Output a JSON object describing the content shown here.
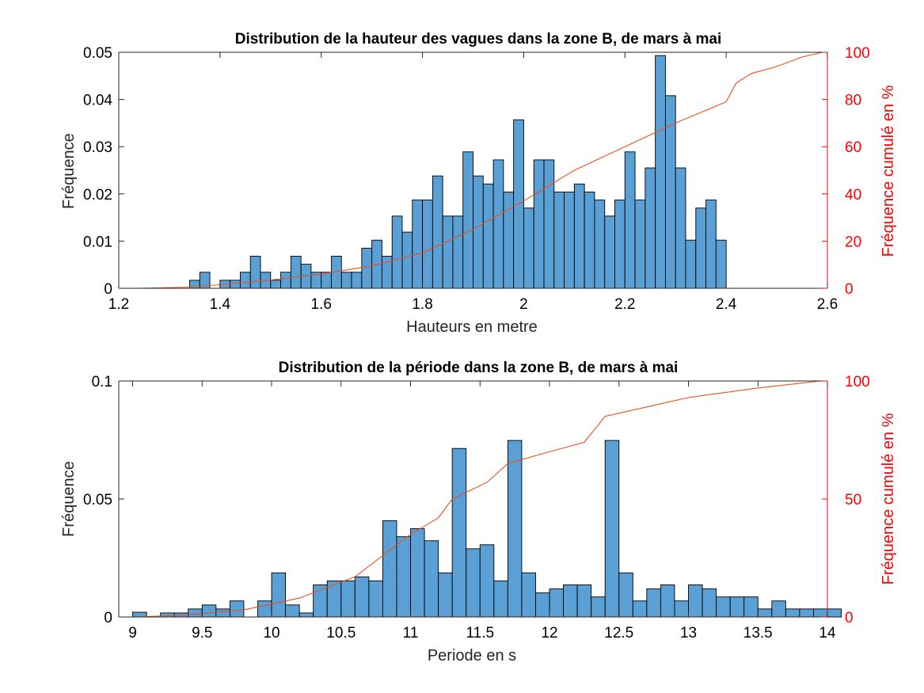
{
  "chart_data": [
    {
      "type": "bar",
      "title": "Distribution de la hauteur des vagues dans la zone B, de mars à mai",
      "xlabel": "Hauteurs en metre",
      "ylabel": "Fréquence",
      "ylabel_right": "Fréquence cumulé en %",
      "xlim": [
        1.2,
        2.6
      ],
      "ylim": [
        0,
        0.05
      ],
      "ylim_right": [
        0,
        100
      ],
      "xticks": [
        "1.2",
        "1.4",
        "1.6",
        "1.8",
        "2",
        "2.2",
        "2.4",
        "2.6"
      ],
      "yticks": [
        "0",
        "0.01",
        "0.02",
        "0.03",
        "0.04",
        "0.05"
      ],
      "yticks_right": [
        "0",
        "20",
        "40",
        "60",
        "80",
        "100"
      ],
      "bar_color": "#5aa0d4",
      "line_color": "#e8501e",
      "right_axis_color": "#ff0000",
      "grid": false,
      "bin_start": 1.34,
      "bin_width": 0.02,
      "values": [
        0.0017,
        0.0034,
        0.0,
        0.0017,
        0.0017,
        0.0034,
        0.0068,
        0.0034,
        0.0017,
        0.0034,
        0.0068,
        0.0051,
        0.0034,
        0.0034,
        0.0068,
        0.0034,
        0.0034,
        0.0085,
        0.0102,
        0.0068,
        0.0153,
        0.0119,
        0.0187,
        0.0187,
        0.0238,
        0.0153,
        0.0153,
        0.0289,
        0.0238,
        0.0221,
        0.0272,
        0.0204,
        0.0357,
        0.017,
        0.0272,
        0.0272,
        0.0204,
        0.0204,
        0.0221,
        0.0204,
        0.0187,
        0.0153,
        0.0187,
        0.0289,
        0.0187,
        0.0255,
        0.0493,
        0.0408,
        0.0255,
        0.0102,
        0.017,
        0.0187,
        0.0102
      ],
      "series": [
        {
          "type": "line",
          "axis": "right",
          "x": [
            1.24,
            1.34,
            1.4,
            1.5,
            1.6,
            1.7,
            1.8,
            1.9,
            2.0,
            2.1,
            2.2,
            2.3,
            2.4,
            2.42,
            2.45,
            2.5,
            2.55,
            2.59
          ],
          "values": [
            0,
            0.5,
            1.5,
            3.5,
            6,
            9.5,
            15,
            25,
            37,
            50,
            60,
            70,
            79,
            87,
            91,
            94,
            98,
            100
          ]
        }
      ]
    },
    {
      "type": "bar",
      "title": "Distribution de la période dans la zone B, de mars à mai",
      "xlabel": "Periode en s",
      "ylabel": "Fréquence",
      "ylabel_right": "Fréquence cumulé en %",
      "xlim": [
        8.9,
        14
      ],
      "ylim": [
        0,
        0.1
      ],
      "ylim_right": [
        0,
        100
      ],
      "xticks": [
        "9",
        "9.5",
        "10",
        "10.5",
        "11",
        "11.5",
        "12",
        "12.5",
        "13",
        "13.5",
        "14"
      ],
      "yticks": [
        "0",
        "0.05",
        "0.1"
      ],
      "yticks_right": [
        "0",
        "50",
        "100"
      ],
      "bar_color": "#5aa0d4",
      "line_color": "#e8501e",
      "right_axis_color": "#ff0000",
      "grid": false,
      "bin_start": 9.0,
      "bin_width": 0.1,
      "values": [
        0.002,
        0.0,
        0.0017,
        0.0017,
        0.0034,
        0.0051,
        0.0034,
        0.0068,
        0.0,
        0.0068,
        0.0187,
        0.0051,
        0.0017,
        0.0136,
        0.0153,
        0.0153,
        0.017,
        0.0153,
        0.0408,
        0.034,
        0.0374,
        0.0323,
        0.0187,
        0.0714,
        0.0289,
        0.0306,
        0.0153,
        0.0748,
        0.0187,
        0.0102,
        0.0119,
        0.0136,
        0.0136,
        0.0085,
        0.0748,
        0.0187,
        0.0068,
        0.0119,
        0.0136,
        0.0068,
        0.0136,
        0.0119,
        0.0085,
        0.0085,
        0.0085,
        0.0034,
        0.0068,
        0.0034,
        0.0034,
        0.0034,
        0.0034
      ],
      "series": [
        {
          "type": "line",
          "axis": "right",
          "x": [
            9.05,
            9.4,
            9.8,
            10.2,
            10.6,
            11.0,
            11.2,
            11.3,
            11.55,
            11.7,
            12.0,
            12.25,
            12.4,
            12.7,
            13.0,
            13.5,
            13.95
          ],
          "values": [
            0,
            1,
            3,
            8,
            17,
            35,
            42,
            50,
            57,
            65,
            70,
            74,
            85,
            89,
            93,
            97,
            100
          ]
        }
      ]
    }
  ]
}
